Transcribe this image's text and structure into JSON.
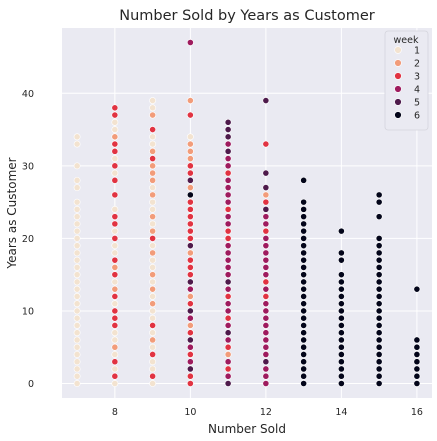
{
  "chart_data": {
    "type": "scatter",
    "title": "Number Sold by Years as Customer",
    "xlabel": "Number Sold",
    "ylabel": "Years as Customer",
    "xlim": [
      6.6,
      16.4
    ],
    "ylim": [
      -2,
      49
    ],
    "xticks": [
      8,
      10,
      12,
      14,
      16
    ],
    "yticks": [
      0,
      10,
      20,
      30,
      40
    ],
    "grid": true,
    "legend": {
      "title": "week",
      "placement": "top-right"
    },
    "series": [
      {
        "name": "1",
        "color": "#f3e3d0",
        "points": [
          [
            7,
            0
          ],
          [
            7,
            1
          ],
          [
            7,
            2
          ],
          [
            7,
            3
          ],
          [
            7,
            4
          ],
          [
            7,
            5
          ],
          [
            7,
            6
          ],
          [
            7,
            7
          ],
          [
            7,
            8
          ],
          [
            7,
            9
          ],
          [
            7,
            10
          ],
          [
            7,
            11
          ],
          [
            7,
            12
          ],
          [
            7,
            13
          ],
          [
            7,
            14
          ],
          [
            7,
            15
          ],
          [
            7,
            16
          ],
          [
            7,
            17
          ],
          [
            7,
            18
          ],
          [
            7,
            19
          ],
          [
            7,
            20
          ],
          [
            7,
            21
          ],
          [
            7,
            22
          ],
          [
            7,
            23
          ],
          [
            7,
            24
          ],
          [
            7,
            25
          ],
          [
            7,
            27
          ],
          [
            7,
            28
          ],
          [
            7,
            30
          ],
          [
            7,
            33
          ],
          [
            7,
            34
          ],
          [
            8,
            0
          ],
          [
            8,
            2
          ],
          [
            8,
            4
          ],
          [
            8,
            6
          ],
          [
            8,
            7
          ],
          [
            8,
            11
          ],
          [
            8,
            14
          ],
          [
            8,
            16
          ],
          [
            8,
            18
          ],
          [
            8,
            19
          ],
          [
            8,
            21
          ],
          [
            8,
            24
          ],
          [
            8,
            26
          ],
          [
            8,
            29
          ],
          [
            8,
            31
          ],
          [
            8,
            34
          ],
          [
            8,
            35
          ],
          [
            8,
            36
          ],
          [
            9,
            0
          ],
          [
            9,
            2
          ],
          [
            9,
            3
          ],
          [
            9,
            5
          ],
          [
            9,
            7
          ],
          [
            9,
            9
          ],
          [
            9,
            10
          ],
          [
            9,
            12
          ],
          [
            9,
            14
          ],
          [
            9,
            16
          ],
          [
            9,
            17
          ],
          [
            9,
            19
          ],
          [
            9,
            20
          ],
          [
            9,
            22
          ],
          [
            9,
            24
          ],
          [
            9,
            25
          ],
          [
            9,
            27
          ],
          [
            9,
            30
          ],
          [
            9,
            33
          ],
          [
            9,
            34
          ],
          [
            9,
            38
          ],
          [
            9,
            39
          ],
          [
            10,
            2
          ],
          [
            10,
            19
          ],
          [
            10,
            21
          ],
          [
            10,
            23
          ],
          [
            10,
            34
          ]
        ]
      },
      {
        "name": "2",
        "color": "#f29c7a",
        "points": [
          [
            8,
            5
          ],
          [
            8,
            13
          ],
          [
            8,
            16
          ],
          [
            8,
            34
          ],
          [
            9,
            6
          ],
          [
            9,
            11
          ],
          [
            9,
            13
          ],
          [
            9,
            15
          ],
          [
            9,
            18
          ],
          [
            9,
            21
          ],
          [
            9,
            23
          ],
          [
            9,
            26
          ],
          [
            9,
            28
          ],
          [
            9,
            29
          ],
          [
            9,
            30
          ],
          [
            9,
            32
          ],
          [
            9,
            37
          ],
          [
            10,
            4
          ],
          [
            10,
            8
          ],
          [
            10,
            12
          ],
          [
            10,
            14
          ],
          [
            10,
            18
          ],
          [
            10,
            20
          ],
          [
            10,
            22
          ],
          [
            10,
            24
          ],
          [
            10,
            25
          ],
          [
            10,
            27
          ],
          [
            10,
            31
          ],
          [
            10,
            32
          ],
          [
            10,
            33
          ],
          [
            10,
            39
          ],
          [
            11,
            4
          ],
          [
            12,
            26
          ]
        ]
      },
      {
        "name": "3",
        "color": "#e13342",
        "points": [
          [
            8,
            1
          ],
          [
            8,
            3
          ],
          [
            8,
            8
          ],
          [
            8,
            9
          ],
          [
            8,
            10
          ],
          [
            8,
            12
          ],
          [
            8,
            15
          ],
          [
            8,
            17
          ],
          [
            8,
            20
          ],
          [
            8,
            22
          ],
          [
            8,
            23
          ],
          [
            8,
            26
          ],
          [
            8,
            28
          ],
          [
            8,
            30
          ],
          [
            8,
            32
          ],
          [
            8,
            33
          ],
          [
            8,
            37
          ],
          [
            8,
            38
          ],
          [
            9,
            1
          ],
          [
            9,
            4
          ],
          [
            9,
            8
          ],
          [
            9,
            20
          ],
          [
            9,
            31
          ],
          [
            9,
            35
          ],
          [
            10,
            0
          ],
          [
            10,
            1
          ],
          [
            10,
            4
          ],
          [
            10,
            7
          ],
          [
            10,
            11
          ],
          [
            10,
            15
          ],
          [
            10,
            16
          ],
          [
            10,
            17
          ],
          [
            10,
            20
          ],
          [
            10,
            21
          ],
          [
            10,
            22
          ],
          [
            10,
            23
          ],
          [
            10,
            24
          ],
          [
            10,
            25
          ],
          [
            10,
            26
          ],
          [
            10,
            29
          ],
          [
            10,
            30
          ],
          [
            10,
            37
          ],
          [
            11,
            2
          ],
          [
            11,
            5
          ],
          [
            11,
            9
          ],
          [
            11,
            12
          ],
          [
            11,
            20
          ],
          [
            11,
            21
          ],
          [
            11,
            24
          ],
          [
            11,
            29
          ],
          [
            12,
            12
          ],
          [
            12,
            14
          ],
          [
            12,
            21
          ],
          [
            12,
            25
          ],
          [
            12,
            33
          ]
        ]
      },
      {
        "name": "4",
        "color": "#9e1b5e",
        "points": [
          [
            10,
            3
          ],
          [
            10,
            5
          ],
          [
            10,
            9
          ],
          [
            10,
            13
          ],
          [
            10,
            47
          ],
          [
            11,
            1
          ],
          [
            11,
            3
          ],
          [
            11,
            6
          ],
          [
            11,
            8
          ],
          [
            11,
            10
          ],
          [
            11,
            11
          ],
          [
            11,
            13
          ],
          [
            11,
            15
          ],
          [
            11,
            16
          ],
          [
            11,
            17
          ],
          [
            11,
            18
          ],
          [
            11,
            19
          ],
          [
            11,
            22
          ],
          [
            11,
            23
          ],
          [
            11,
            25
          ],
          [
            11,
            26
          ],
          [
            11,
            27
          ],
          [
            11,
            28
          ],
          [
            11,
            30
          ],
          [
            11,
            31
          ],
          [
            11,
            33
          ],
          [
            12,
            0
          ],
          [
            12,
            1
          ],
          [
            12,
            2
          ],
          [
            12,
            4
          ],
          [
            12,
            5
          ],
          [
            12,
            6
          ],
          [
            12,
            7
          ],
          [
            12,
            8
          ],
          [
            12,
            9
          ],
          [
            12,
            10
          ],
          [
            12,
            11
          ],
          [
            12,
            13
          ],
          [
            12,
            15
          ],
          [
            12,
            16
          ],
          [
            12,
            17
          ],
          [
            12,
            18
          ],
          [
            12,
            19
          ],
          [
            12,
            20
          ],
          [
            12,
            22
          ],
          [
            12,
            23
          ]
        ]
      },
      {
        "name": "5",
        "color": "#4e1a4b",
        "points": [
          [
            10,
            2
          ],
          [
            10,
            6
          ],
          [
            10,
            10
          ],
          [
            10,
            14
          ],
          [
            10,
            19
          ],
          [
            10,
            28
          ],
          [
            11,
            0
          ],
          [
            11,
            7
          ],
          [
            11,
            14
          ],
          [
            11,
            32
          ],
          [
            11,
            34
          ],
          [
            11,
            35
          ],
          [
            11,
            36
          ],
          [
            12,
            3
          ],
          [
            12,
            24
          ],
          [
            12,
            27
          ],
          [
            12,
            29
          ],
          [
            12,
            39
          ]
        ]
      },
      {
        "name": "6",
        "color": "#03051a",
        "points": [
          [
            10,
            26
          ],
          [
            13,
            0
          ],
          [
            13,
            1
          ],
          [
            13,
            2
          ],
          [
            13,
            3
          ],
          [
            13,
            4
          ],
          [
            13,
            5
          ],
          [
            13,
            6
          ],
          [
            13,
            7
          ],
          [
            13,
            8
          ],
          [
            13,
            9
          ],
          [
            13,
            10
          ],
          [
            13,
            11
          ],
          [
            13,
            12
          ],
          [
            13,
            13
          ],
          [
            13,
            14
          ],
          [
            13,
            15
          ],
          [
            13,
            16
          ],
          [
            13,
            17
          ],
          [
            13,
            18
          ],
          [
            13,
            19
          ],
          [
            13,
            20
          ],
          [
            13,
            21
          ],
          [
            13,
            22
          ],
          [
            13,
            23
          ],
          [
            13,
            24
          ],
          [
            13,
            25
          ],
          [
            13,
            28
          ],
          [
            14,
            0
          ],
          [
            14,
            1
          ],
          [
            14,
            2
          ],
          [
            14,
            3
          ],
          [
            14,
            4
          ],
          [
            14,
            5
          ],
          [
            14,
            6
          ],
          [
            14,
            7
          ],
          [
            14,
            8
          ],
          [
            14,
            9
          ],
          [
            14,
            10
          ],
          [
            14,
            11
          ],
          [
            14,
            12
          ],
          [
            14,
            13
          ],
          [
            14,
            14
          ],
          [
            14,
            15
          ],
          [
            14,
            17
          ],
          [
            14,
            18
          ],
          [
            14,
            21
          ],
          [
            15,
            0
          ],
          [
            15,
            1
          ],
          [
            15,
            2
          ],
          [
            15,
            3
          ],
          [
            15,
            4
          ],
          [
            15,
            5
          ],
          [
            15,
            6
          ],
          [
            15,
            7
          ],
          [
            15,
            8
          ],
          [
            15,
            9
          ],
          [
            15,
            10
          ],
          [
            15,
            11
          ],
          [
            15,
            12
          ],
          [
            15,
            13
          ],
          [
            15,
            14
          ],
          [
            15,
            15
          ],
          [
            15,
            16
          ],
          [
            15,
            17
          ],
          [
            15,
            18
          ],
          [
            15,
            19
          ],
          [
            15,
            20
          ],
          [
            15,
            23
          ],
          [
            15,
            25
          ],
          [
            15,
            26
          ],
          [
            16,
            0
          ],
          [
            16,
            1
          ],
          [
            16,
            2
          ],
          [
            16,
            3
          ],
          [
            16,
            4
          ],
          [
            16,
            5
          ],
          [
            16,
            6
          ],
          [
            16,
            13
          ]
        ]
      }
    ]
  }
}
